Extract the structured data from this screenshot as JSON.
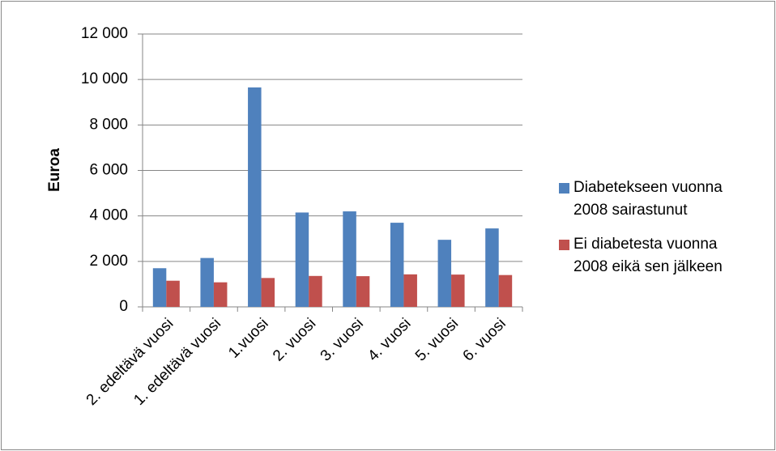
{
  "chart_data": {
    "type": "bar",
    "y_label": "Euroa",
    "categories": [
      "2. edeltävä vuosi",
      "1. edeltävä vuosi",
      "1.vuosi",
      "2. vuosi",
      "3. vuosi",
      "4. vuosi",
      "5. vuosi",
      "6. vuosi"
    ],
    "series": [
      {
        "name": "Diabetekseen vuonna 2008 sairastunut",
        "color": "#4f81bd",
        "values": [
          1700,
          2150,
          9650,
          4150,
          4200,
          3700,
          2950,
          3450
        ]
      },
      {
        "name": "Ei diabetesta vuonna 2008 eikä sen jälkeen",
        "color": "#c0504d",
        "values": [
          1150,
          1080,
          1270,
          1360,
          1350,
          1430,
          1420,
          1400
        ]
      }
    ],
    "ylim": [
      0,
      12000
    ],
    "yticks": [
      0,
      {
        "value": 2000,
        "label": "2 000"
      },
      {
        "value": 4000,
        "label": "4 000"
      },
      {
        "value": 6000,
        "label": "6 000"
      },
      {
        "value": 8000,
        "label": "8 000"
      },
      {
        "value": 10000,
        "label": "10 000"
      },
      {
        "value": 12000,
        "label": "12 000"
      }
    ],
    "grid": true
  }
}
